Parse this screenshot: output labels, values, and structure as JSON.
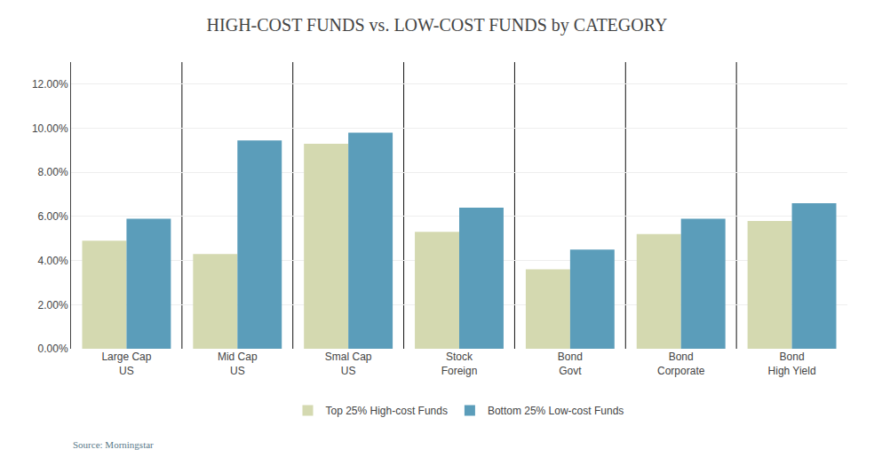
{
  "chart_data": {
    "type": "bar",
    "title": "HIGH-COST FUNDS vs. LOW-COST FUNDS by CATEGORY",
    "categories": [
      "Large Cap\nUS",
      "Mid Cap\nUS",
      "Smal Cap\nUS",
      "Stock\nForeign",
      "Bond\nGovt",
      "Bond\nCorporate",
      "Bond\nHigh Yield"
    ],
    "series": [
      {
        "name": "Top 25% High-cost Funds",
        "color": "#d4d9b0",
        "values": [
          0.049,
          0.043,
          0.093,
          0.053,
          0.036,
          0.052,
          0.058
        ]
      },
      {
        "name": "Bottom 25% Low-cost Funds",
        "color": "#5b9dba",
        "values": [
          0.059,
          0.0945,
          0.098,
          0.064,
          0.045,
          0.059,
          0.066
        ]
      }
    ],
    "ylim": [
      0,
      0.13
    ],
    "yticks": [
      {
        "value": 0.0,
        "label": "0.00%"
      },
      {
        "value": 0.02,
        "label": "2.00%"
      },
      {
        "value": 0.04,
        "label": "4.00%"
      },
      {
        "value": 0.06,
        "label": "6.00%"
      },
      {
        "value": 0.08,
        "label": "8.00%"
      },
      {
        "value": 0.1,
        "label": "10.00%"
      },
      {
        "value": 0.12,
        "label": "12.00%"
      }
    ],
    "grid": true,
    "legend": "bottom",
    "annotations": [
      "Source: Morningstar"
    ]
  }
}
